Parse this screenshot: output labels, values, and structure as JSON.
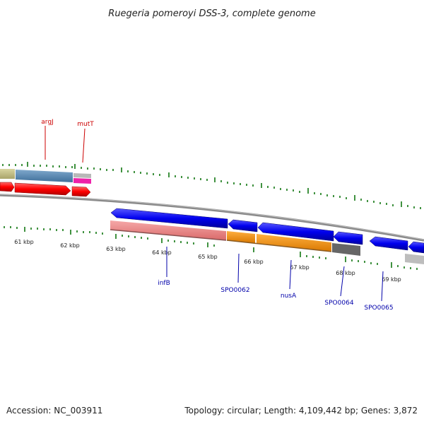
{
  "title": "Ruegeria pomeroyi DSS-3, complete genome",
  "footer": {
    "accession": "Accession: NC_003911",
    "summary": "Topology: circular; Length: 4,109,442 bp; Genes: 3,872"
  },
  "colors": {
    "forward_strand": "#0000ee",
    "reverse_strand": "#ff0000",
    "label_red": "#cc0000",
    "label_blue": "#0000aa",
    "tick": "#117711",
    "backbone": "#808080"
  },
  "scale_labels": [
    "61 kbp",
    "62 kbp",
    "63 kbp",
    "64 kbp",
    "65 kbp",
    "66 kbp",
    "67 kbp",
    "68 kbp",
    "69 kbp"
  ],
  "gene_labels_top": [
    {
      "name": "argJ",
      "color": "red"
    },
    {
      "name": "mutT",
      "color": "red"
    }
  ],
  "gene_labels_bottom": [
    {
      "name": "infB",
      "color": "blue"
    },
    {
      "name": "SPO0062",
      "color": "blue"
    },
    {
      "name": "nusA",
      "color": "blue"
    },
    {
      "name": "SPO0064",
      "color": "blue"
    },
    {
      "name": "SPO0065",
      "color": "blue"
    }
  ]
}
